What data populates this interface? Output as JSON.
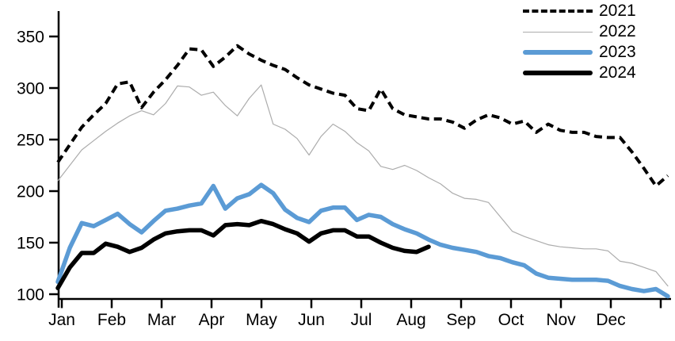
{
  "chart_data": {
    "type": "line",
    "title": "",
    "frequency": "weekly",
    "x_categories": [
      "Jan",
      "Feb",
      "Mar",
      "Apr",
      "May",
      "Jun",
      "Jul",
      "Aug",
      "Sep",
      "Oct",
      "Nov",
      "Dec"
    ],
    "y_ticks": [
      100,
      150,
      200,
      250,
      300,
      350
    ],
    "ylim": [
      95,
      375
    ],
    "grid": false,
    "legend_position": "top-right",
    "axis_color": "#000000",
    "series": [
      {
        "name": "2021",
        "color": "#000000",
        "line_style": "dashed",
        "line_width": 4,
        "values": [
          228,
          245,
          262,
          274,
          285,
          304,
          306,
          281,
          296,
          308,
          322,
          338,
          337,
          321,
          330,
          341,
          333,
          327,
          322,
          318,
          310,
          303,
          299,
          295,
          293,
          280,
          278,
          299,
          280,
          274,
          272,
          270,
          270,
          267,
          261,
          269,
          274,
          271,
          265,
          268,
          257,
          265,
          259,
          257,
          257,
          253,
          252,
          252,
          238,
          222,
          205,
          215
        ]
      },
      {
        "name": "2022",
        "color": "#ACACAC",
        "line_style": "solid",
        "line_width": 1.2,
        "values": [
          210,
          225,
          240,
          249,
          258,
          266,
          273,
          278,
          274,
          285,
          302,
          301,
          293,
          296,
          283,
          273,
          290,
          303,
          265,
          260,
          251,
          235,
          253,
          265,
          258,
          247,
          239,
          224,
          221,
          225,
          220,
          213,
          207,
          198,
          193,
          192,
          189,
          175,
          161,
          156,
          152,
          148,
          146,
          145,
          144,
          144,
          142,
          132,
          130,
          126,
          122,
          108
        ]
      },
      {
        "name": "2023",
        "color": "#5B9BD5",
        "line_style": "solid",
        "line_width": 5.5,
        "values": [
          112,
          145,
          169,
          166,
          172,
          178,
          168,
          160,
          171,
          181,
          183,
          186,
          188,
          205,
          183,
          193,
          197,
          206,
          198,
          182,
          174,
          170,
          181,
          184,
          184,
          172,
          177,
          175,
          168,
          163,
          159,
          153,
          148,
          145,
          143,
          141,
          137,
          135,
          131,
          128,
          120,
          116,
          115,
          114,
          114,
          114,
          113,
          108,
          105,
          103,
          105,
          98
        ]
      },
      {
        "name": "2024",
        "color": "#000000",
        "line_style": "solid",
        "line_width": 5.5,
        "values": [
          106,
          126,
          140,
          140,
          149,
          146,
          141,
          145,
          153,
          159,
          161,
          162,
          162,
          157,
          167,
          168,
          167,
          171,
          168,
          163,
          159,
          151,
          159,
          162,
          162,
          156,
          156,
          150,
          145,
          142,
          141,
          146
        ]
      }
    ]
  }
}
